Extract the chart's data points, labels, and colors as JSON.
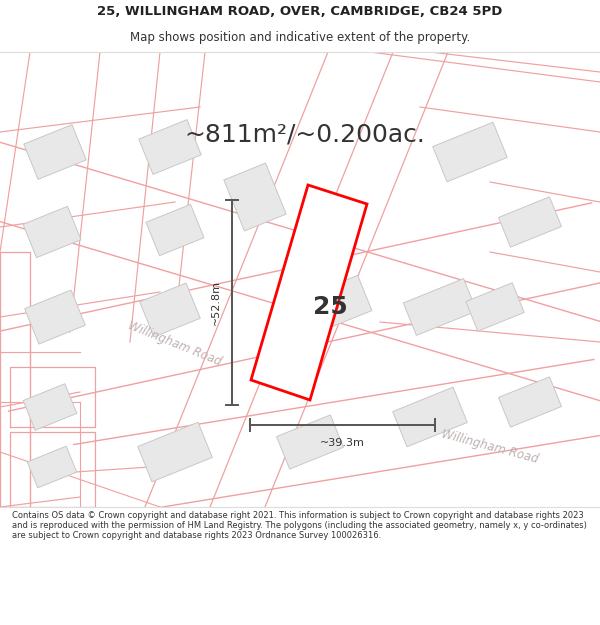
{
  "title_line1": "25, WILLINGHAM ROAD, OVER, CAMBRIDGE, CB24 5PD",
  "title_line2": "Map shows position and indicative extent of the property.",
  "area_text": "~811m²/~0.200ac.",
  "label_25": "25",
  "dim_vertical": "~52.8m",
  "dim_horizontal": "~39.3m",
  "road_label1": "Willingham Road",
  "road_label2": "Willingham Road",
  "footer_text": "Contains OS data © Crown copyright and database right 2021. This information is subject to Crown copyright and database rights 2023 and is reproduced with the permission of HM Land Registry. The polygons (including the associated geometry, namely x, y co-ordinates) are subject to Crown copyright and database rights 2023 Ordnance Survey 100026316.",
  "map_bg": "#ffffff",
  "building_fill": "#e8e8e8",
  "building_edge": "#c8c8c8",
  "parcel_edge": "#f0a0a0",
  "highlight_color": "#ff0000",
  "highlight_fill": "#ffffff",
  "dim_line_color": "#555555",
  "road_text_color": "#c0b0b0"
}
